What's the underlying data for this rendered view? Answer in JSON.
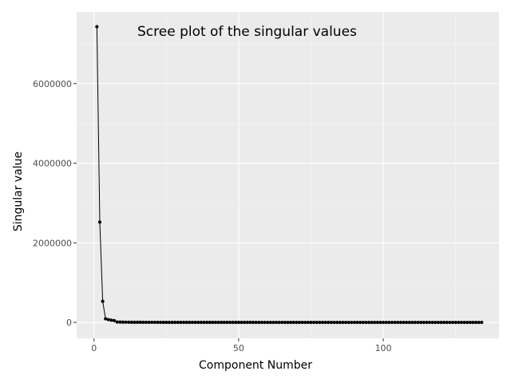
{
  "chart_data": {
    "type": "line",
    "title": "Scree plot of the singular values",
    "xlabel": "Component Number",
    "ylabel": "Singular value",
    "xlim": [
      -6,
      140
    ],
    "ylim": [
      -400000,
      7800000
    ],
    "x_ticks": [
      0,
      50,
      100
    ],
    "x_tick_labels": [
      "0",
      "50",
      "100"
    ],
    "y_ticks": [
      0,
      2000000,
      4000000,
      6000000
    ],
    "y_tick_labels": [
      "0",
      "2000000",
      "4000000",
      "6000000"
    ],
    "grid": true,
    "legend": "none",
    "series": [
      {
        "x_start": 1,
        "x_step": 1,
        "values": [
          7430000,
          2520000,
          530000,
          90000,
          70000,
          55000,
          45000,
          10000,
          8000,
          6000,
          5000,
          4500,
          4000,
          3500,
          3000,
          2800,
          2600,
          2400,
          2200,
          2000,
          1900,
          1800,
          1700,
          1600,
          1500,
          1400,
          1300,
          1200,
          1100,
          1000,
          950,
          900,
          850,
          800,
          750,
          700,
          650,
          600,
          580,
          560,
          540,
          520,
          500,
          480,
          460,
          440,
          420,
          400,
          380,
          360,
          340,
          320,
          300,
          290,
          280,
          270,
          260,
          250,
          240,
          230,
          220,
          210,
          200,
          190,
          180,
          170,
          160,
          150,
          145,
          140,
          135,
          130,
          125,
          120,
          115,
          110,
          105,
          100,
          95,
          90,
          85,
          80,
          75,
          70,
          65,
          60,
          58,
          56,
          54,
          52,
          50,
          48,
          46,
          44,
          42,
          40,
          38,
          36,
          34,
          32,
          30,
          29,
          28,
          27,
          26,
          25,
          24,
          23,
          22,
          21,
          20,
          19,
          18,
          17,
          16,
          15,
          14,
          13,
          12,
          11,
          10,
          9,
          8,
          7,
          6,
          5,
          4,
          3,
          2,
          1,
          1,
          1,
          1,
          1
        ]
      }
    ]
  },
  "colors": {
    "panel_background": "#ebebeb",
    "grid_major": "#ffffff",
    "grid_minor": "#f5f5f5",
    "line": "#000000",
    "point": "#000000",
    "tick_text": "#4d4d4d",
    "tick_mark": "#333333"
  }
}
